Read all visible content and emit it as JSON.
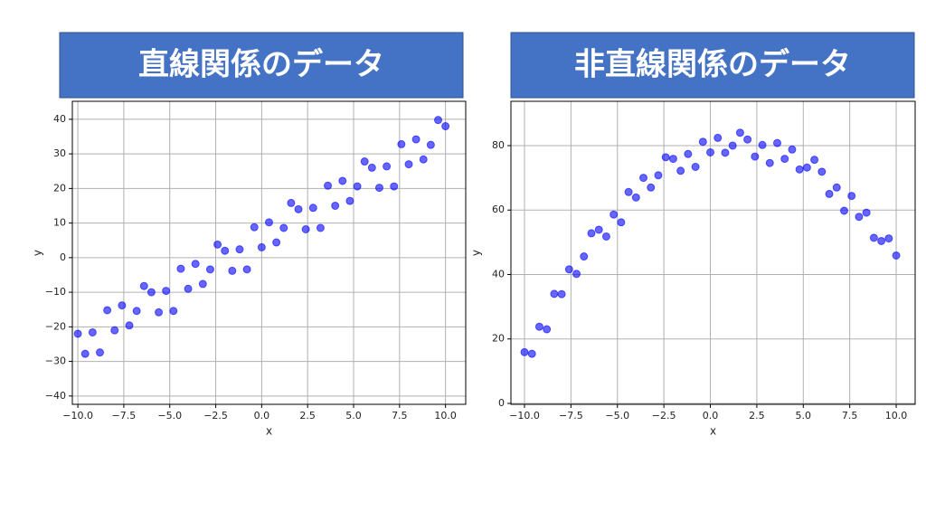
{
  "chart_data": [
    {
      "type": "scatter",
      "title": "直線関係のデータ",
      "x_label": "x",
      "y_label": "y",
      "color": "#0000ff",
      "grid": true,
      "x": [
        -10,
        -9.6,
        -9.2,
        -8.8,
        -8.4,
        -8,
        -7.6,
        -7.2,
        -6.8,
        -6.4,
        -6,
        -5.6,
        -5.2,
        -4.8,
        -4.4,
        -4,
        -3.6,
        -3.2,
        -2.8,
        -2.4,
        -2,
        -1.6,
        -1.2,
        -0.8,
        -0.4,
        0,
        0.4,
        0.8,
        1.2,
        1.6,
        2,
        2.4,
        2.8,
        3.2,
        3.6,
        4,
        4.4,
        4.8,
        5.2,
        5.6,
        6,
        6.4,
        6.8,
        7.2,
        7.6,
        8,
        8.4,
        8.8,
        9.2,
        9.6,
        10
      ],
      "values": [
        -22,
        -27.8,
        -21.6,
        -27.4,
        -15.2,
        -21,
        -13.8,
        -19.6,
        -15.4,
        -8.2,
        -10,
        -15.8,
        -9.6,
        -15.4,
        -3.2,
        -9,
        -1.8,
        -7.6,
        -3.4,
        3.8,
        2,
        -3.8,
        2.4,
        -3.4,
        8.8,
        3,
        10.2,
        4.4,
        8.6,
        15.8,
        14,
        8.2,
        14.4,
        8.6,
        20.8,
        15,
        22.2,
        16.4,
        20.6,
        27.8,
        26,
        20.2,
        26.4,
        20.6,
        32.8,
        27,
        34.2,
        28.4,
        32.6,
        39.8,
        38
      ],
      "xlim": [
        -10.3,
        11.1
      ],
      "ylim": [
        -42.4,
        45.2
      ],
      "xticks": [
        {
          "value": -10,
          "label": "−10.0"
        },
        {
          "value": -7.5,
          "label": "−7.5"
        },
        {
          "value": -5,
          "label": "−5.0"
        },
        {
          "value": -2.5,
          "label": "−2.5"
        },
        {
          "value": 0,
          "label": "0.0"
        },
        2.5,
        {
          "value": 5,
          "label": "5.0"
        },
        7.5,
        {
          "value": 10,
          "label": "10.0"
        }
      ],
      "yticks": [
        {
          "value": -40,
          "label": "−40"
        },
        {
          "value": -30,
          "label": "−30"
        },
        {
          "value": -20,
          "label": "−20"
        },
        {
          "value": -10,
          "label": "−10"
        },
        0,
        10,
        20,
        30,
        40
      ]
    },
    {
      "type": "scatter",
      "title": "非直線関係のデータ",
      "x_label": "x",
      "y_label": "y",
      "color": "#0000ff",
      "grid": true,
      "x": [
        -10,
        -9.6,
        -9.2,
        -8.8,
        -8.4,
        -8,
        -7.6,
        -7.2,
        -6.8,
        -6.4,
        -6,
        -5.6,
        -5.2,
        -4.8,
        -4.4,
        -4,
        -3.6,
        -3.2,
        -2.8,
        -2.4,
        -2,
        -1.6,
        -1.2,
        -0.8,
        -0.4,
        0,
        0.4,
        0.8,
        1.2,
        1.6,
        2,
        2.4,
        2.8,
        3.2,
        3.6,
        4,
        4.4,
        4.8,
        5.2,
        5.6,
        6,
        6.4,
        6.8,
        7.2,
        7.6,
        8,
        8.4,
        8.8,
        9.2,
        9.6,
        10
      ],
      "values": [
        15.9,
        15.4,
        23.8,
        23,
        34,
        33.9,
        41.6,
        40.2,
        45.6,
        52.8,
        53.9,
        51.8,
        58.6,
        56.2,
        65.6,
        63.9,
        70,
        67,
        70.8,
        76.4,
        75.9,
        72.2,
        77.4,
        73.4,
        81.2,
        77.9,
        82.4,
        77.8,
        80,
        84,
        81.9,
        76.6,
        80.2,
        74.6,
        80.8,
        75.9,
        78.8,
        72.6,
        73.2,
        75.6,
        71.9,
        65,
        67,
        59.8,
        64.4,
        57.9,
        59.2,
        51.4,
        50.4,
        51.2,
        45.9
      ],
      "xlim": [
        -10.73,
        11.02
      ],
      "ylim": [
        -0.28,
        93.75
      ],
      "xticks": [
        {
          "value": -10,
          "label": "−10.0"
        },
        {
          "value": -7.5,
          "label": "−7.5"
        },
        {
          "value": -5,
          "label": "−5.0"
        },
        {
          "value": -2.5,
          "label": "−2.5"
        },
        {
          "value": 0,
          "label": "0.0"
        },
        2.5,
        {
          "value": 5,
          "label": "5.0"
        },
        7.5,
        {
          "value": 10,
          "label": "10.0"
        }
      ],
      "yticks": [
        0,
        20,
        40,
        60,
        80
      ]
    }
  ]
}
